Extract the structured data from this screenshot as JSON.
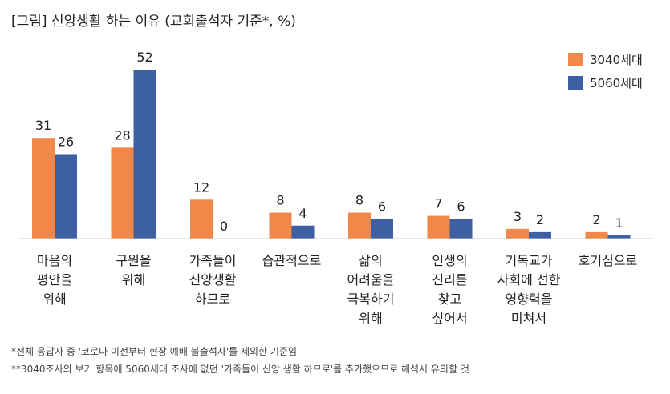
{
  "chart_data": {
    "type": "bar",
    "title": "[그림] 신앙생활 하는 이유 (교회출석자 기준*, %)",
    "categories": [
      "마음의 평안을 위해",
      "구원을 위해",
      "가족들이 신앙생활 하므로",
      "습관적으로",
      "삶의 어려움을 극복하기 위해",
      "인생의 진리를 찾고 싶어서",
      "기독교가 사회에 선한 영향력을 미쳐서",
      "호기심으로"
    ],
    "category_lines": [
      [
        "마음의",
        "평안을",
        "위해"
      ],
      [
        "구원을",
        "위해"
      ],
      [
        "가족들이",
        "신앙생활",
        "하므로"
      ],
      [
        "습관적으로"
      ],
      [
        "삶의",
        "어려움을",
        "극복하기",
        "위해"
      ],
      [
        "인생의",
        "진리를",
        "찾고",
        "싶어서"
      ],
      [
        "기독교가",
        "사회에 선한",
        "영향력을",
        "미쳐서"
      ],
      [
        "호기심으로"
      ]
    ],
    "series": [
      {
        "name": "3040세대",
        "color": "#f0884a",
        "values": [
          31,
          28,
          12,
          8,
          8,
          7,
          3,
          2
        ]
      },
      {
        "name": "5060세대",
        "color": "#3d5fa3",
        "values": [
          26,
          52,
          0,
          4,
          6,
          6,
          2,
          1
        ]
      }
    ],
    "ylim": [
      0,
      52
    ],
    "xlabel": "",
    "ylabel": "",
    "grid": false,
    "legend": "top-right"
  },
  "footnotes": [
    "*전체 응답자 중 '코로나 이전부터 현장 예배 불출석자'를 제외한 기준임",
    "**3040조사의 보기 항목에 5060세대 조사에 없던 '가족들이 신앙 생활 하므로'를 추가했으므로 해석시 유의할 것"
  ],
  "colors": {
    "text": "#222222",
    "footnote": "#444444",
    "axis": "#cccccc"
  }
}
